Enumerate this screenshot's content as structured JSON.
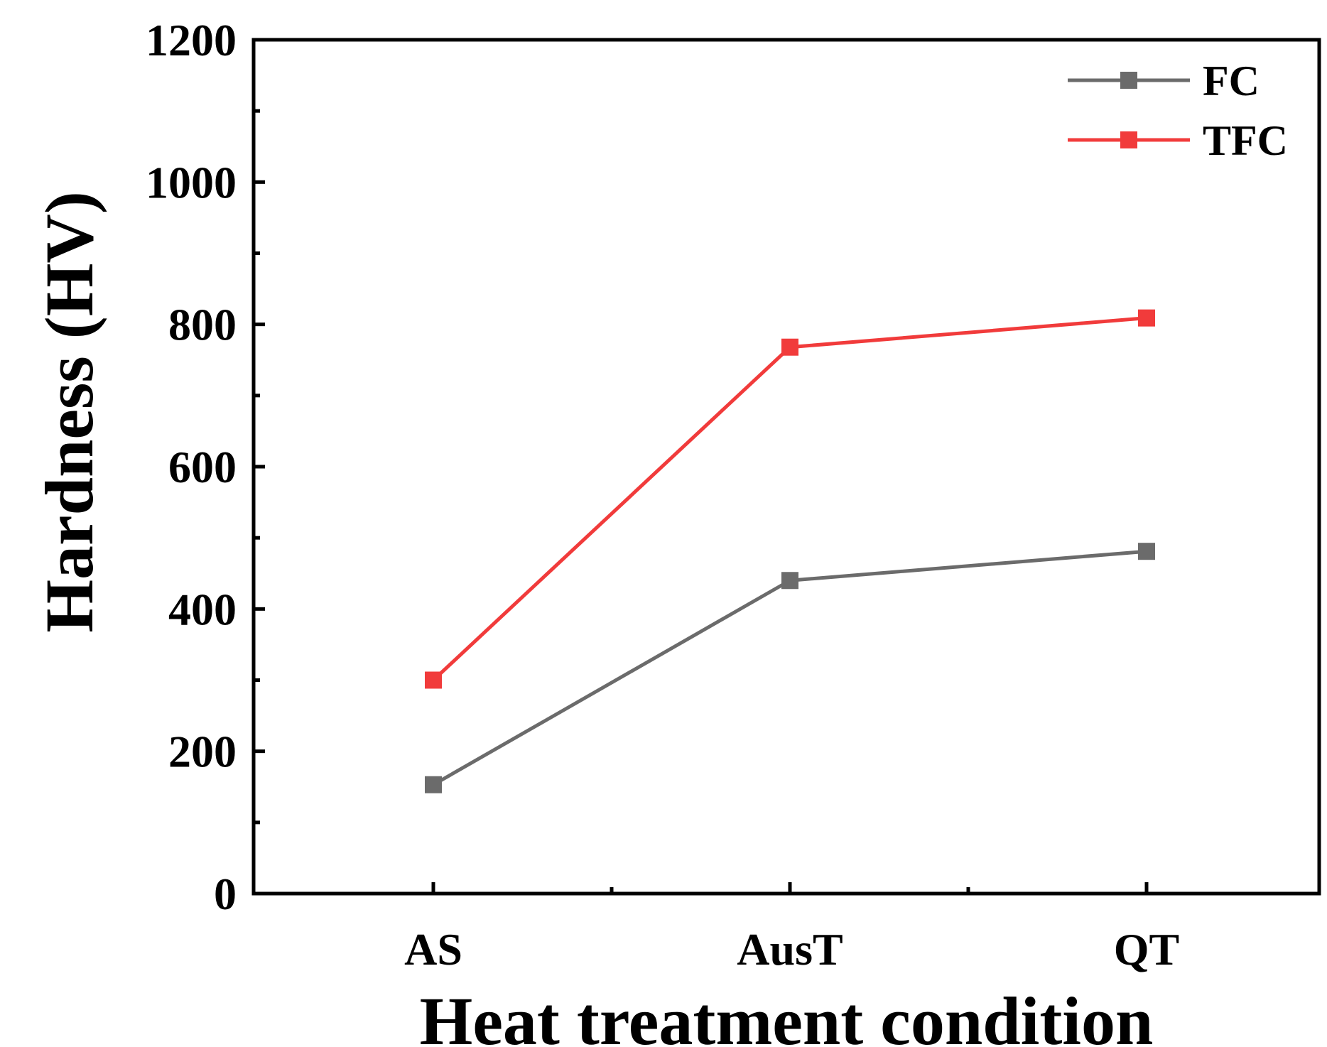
{
  "chart_data": {
    "type": "line",
    "title": "",
    "xlabel": "Heat treatment condition",
    "ylabel": "Hardness (HV)",
    "categories": [
      "AS",
      "AusT",
      "QT"
    ],
    "ylim": [
      0,
      1200
    ],
    "yticks": [
      "0",
      "200",
      "400",
      "600",
      "800",
      "1000",
      "1200"
    ],
    "grid": false,
    "legend_position": "top-right",
    "series": [
      {
        "name": "FC",
        "values": [
          153,
          440,
          481
        ],
        "color": "#6b6b6b",
        "marker": "square"
      },
      {
        "name": "TFC",
        "values": [
          300,
          768,
          809
        ],
        "color": "#f13b3b",
        "marker": "square"
      }
    ]
  }
}
